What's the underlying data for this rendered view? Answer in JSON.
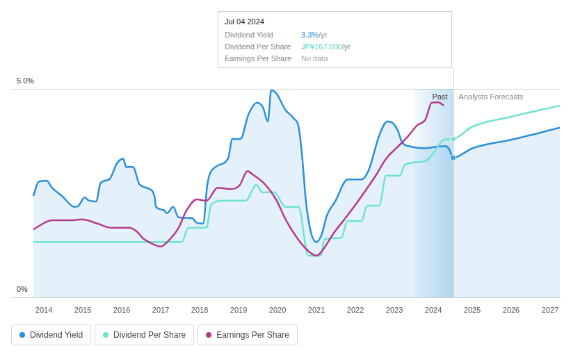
{
  "chart_data": {
    "type": "line",
    "xlim": [
      2013.16,
      2027.25
    ],
    "xticks": [
      2014,
      2015,
      2016,
      2017,
      2018,
      2019,
      2020,
      2021,
      2022,
      2023,
      2024,
      2025,
      2026,
      2027
    ],
    "ylim": [
      0,
      5
    ],
    "yticks": [
      {
        "value": 0,
        "label": "0%"
      },
      {
        "value": 5,
        "label": "5.0%"
      }
    ],
    "grid": true,
    "legend": "bottom",
    "annotations": [
      {
        "text": "Past",
        "x": 2024.51
      },
      {
        "text": "Analysts Forecasts",
        "x": 2024.51
      }
    ],
    "tooltip": {
      "x": 2024.51,
      "title": "Jul 04 2024",
      "rows": [
        {
          "label": "Dividend Yield",
          "value": "3.3%",
          "unit": "/yr"
        },
        {
          "label": "Dividend Per Share",
          "value": "JP¥167.000",
          "unit": "/yr"
        },
        {
          "label": "Earnings Per Share",
          "value": "No data"
        }
      ]
    },
    "series": [
      {
        "name": "Dividend Yield",
        "color": "#2b8fd9",
        "marker": "circle",
        "x": [
          2013.73,
          2013.86,
          2014.07,
          2014.21,
          2014.48,
          2014.79,
          2014.89,
          2015.05,
          2015.14,
          2015.34,
          2015.46,
          2015.68,
          2015.88,
          2016.04,
          2016.11,
          2016.29,
          2016.45,
          2016.71,
          2016.84,
          2016.88,
          2017.07,
          2017.16,
          2017.32,
          2017.46,
          2017.82,
          2017.91,
          2018.09,
          2018.2,
          2018.41,
          2018.73,
          2018.84,
          2019.05,
          2019.25,
          2019.48,
          2019.63,
          2019.75,
          2019.84,
          2019.98,
          2020.2,
          2020.41,
          2020.55,
          2020.64,
          2020.73,
          2020.86,
          2021.0,
          2021.13,
          2021.27,
          2021.48,
          2021.8,
          2022.16,
          2022.34,
          2022.61,
          2022.82,
          2022.96,
          2023.09,
          2023.2,
          2023.41,
          2023.77,
          2024.13,
          2024.32,
          2024.41,
          2024.51,
          2025.01,
          2025.99,
          2027.25
        ],
        "values": [
          2.43,
          2.77,
          2.8,
          2.63,
          2.42,
          2.17,
          2.2,
          2.4,
          2.33,
          2.3,
          2.75,
          2.83,
          3.22,
          3.33,
          3.13,
          3.13,
          2.72,
          2.6,
          2.43,
          2.17,
          2.1,
          2.02,
          2.17,
          1.92,
          1.9,
          1.8,
          1.77,
          2.72,
          3.13,
          3.33,
          3.8,
          3.8,
          4.38,
          4.67,
          4.55,
          4.22,
          4.97,
          4.88,
          4.5,
          4.3,
          4.05,
          3.3,
          2.3,
          1.55,
          1.33,
          1.5,
          1.97,
          2.3,
          2.83,
          2.83,
          3.05,
          3.88,
          4.22,
          4.18,
          4.0,
          3.72,
          3.62,
          3.58,
          3.62,
          3.63,
          3.55,
          3.35,
          3.58,
          3.78,
          4.07
        ]
      },
      {
        "name": "Dividend Per Share",
        "color": "#6fe3cf",
        "marker": "circle",
        "x": [
          2013.73,
          2017.54,
          2017.71,
          2018.18,
          2018.29,
          2018.61,
          2019.18,
          2019.46,
          2019.61,
          2019.91,
          2020.21,
          2020.54,
          2020.79,
          2021.11,
          2021.21,
          2021.64,
          2021.79,
          2022.16,
          2022.3,
          2022.61,
          2022.79,
          2023.14,
          2023.27,
          2023.8,
          2023.98,
          2024.27,
          2024.51,
          2025.01,
          2025.99,
          2027.25
        ],
        "values": [
          1.33,
          1.33,
          1.67,
          1.67,
          2.22,
          2.32,
          2.32,
          2.7,
          2.52,
          2.52,
          2.17,
          2.17,
          1.0,
          1.0,
          1.4,
          1.43,
          1.83,
          1.83,
          2.2,
          2.2,
          2.92,
          2.92,
          3.18,
          3.27,
          3.43,
          3.78,
          3.8,
          4.1,
          4.33,
          4.6
        ]
      },
      {
        "name": "Earnings Per Share",
        "color": "#b53b8b",
        "x": [
          2013.73,
          2014.21,
          2014.66,
          2014.98,
          2015.38,
          2015.73,
          2016.18,
          2016.39,
          2016.54,
          2016.8,
          2017.0,
          2017.21,
          2017.46,
          2017.66,
          2017.93,
          2018.18,
          2018.46,
          2018.77,
          2019.02,
          2019.23,
          2019.36,
          2019.66,
          2019.96,
          2020.23,
          2020.5,
          2020.77,
          2021.0,
          2021.13,
          2021.45,
          2021.8,
          2022.16,
          2022.52,
          2022.79,
          2023.05,
          2023.32,
          2023.59,
          2023.8,
          2023.96,
          2024.13,
          2024.27
        ],
        "values": [
          1.63,
          1.85,
          1.85,
          1.87,
          1.77,
          1.67,
          1.67,
          1.58,
          1.42,
          1.28,
          1.22,
          1.37,
          1.67,
          2.08,
          2.35,
          2.32,
          2.63,
          2.6,
          2.68,
          3.03,
          2.95,
          2.73,
          2.35,
          1.83,
          1.43,
          1.13,
          1.0,
          1.1,
          1.55,
          1.97,
          2.43,
          2.92,
          3.33,
          3.58,
          3.83,
          4.13,
          4.27,
          4.67,
          4.68,
          4.6
        ]
      }
    ]
  }
}
